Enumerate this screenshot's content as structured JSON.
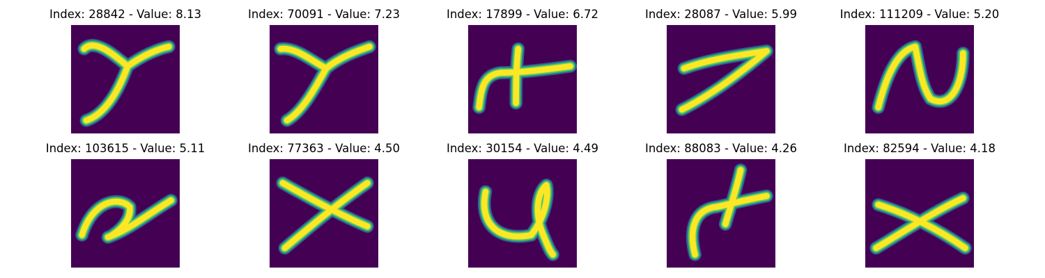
{
  "colormap": {
    "background": "#440154",
    "low": "#3b528b",
    "mid": "#21918c",
    "high": "#5ec962",
    "peak": "#fde725"
  },
  "samples": [
    {
      "index": "28842",
      "value": "8.13",
      "glyph": "y-like stroke"
    },
    {
      "index": "70091",
      "value": "7.23",
      "glyph": "y-like stroke"
    },
    {
      "index": "17899",
      "value": "6.72",
      "glyph": "cross with hook"
    },
    {
      "index": "28087",
      "value": "5.99",
      "glyph": "7-like stroke"
    },
    {
      "index": "111209",
      "value": "5.20",
      "glyph": "n-u loop"
    },
    {
      "index": "103615",
      "value": "5.11",
      "glyph": "loop with tail"
    },
    {
      "index": "77363",
      "value": "4.50",
      "glyph": "x cross"
    },
    {
      "index": "30154",
      "value": "4.49",
      "glyph": "u with loop"
    },
    {
      "index": "88083",
      "value": "4.26",
      "glyph": "cross with hook"
    },
    {
      "index": "82594",
      "value": "4.18",
      "glyph": "x cross"
    }
  ]
}
